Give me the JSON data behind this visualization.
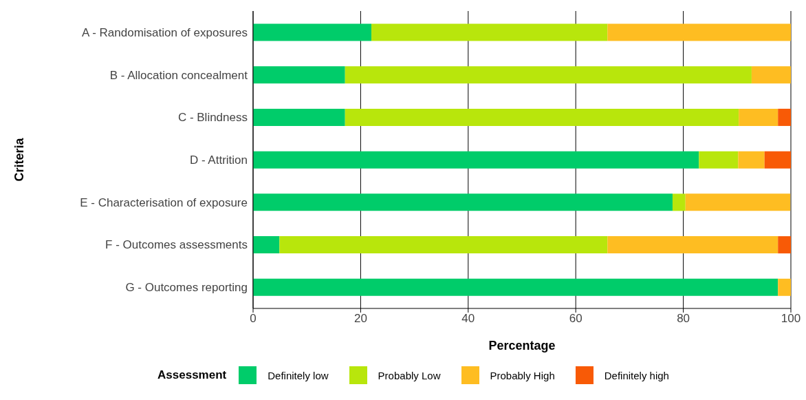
{
  "chart_data": {
    "type": "bar",
    "orientation": "horizontal",
    "stacked": true,
    "xlabel": "Percentage",
    "ylabel": "Criteria",
    "legend_title": "Assessment",
    "legend": "bottom",
    "grid": "x",
    "categories": [
      "A - Randomisation of exposures",
      "B - Allocation concealment",
      "C - Blindness",
      "D - Attrition",
      "E - Characterisation of exposure",
      "F - Outcomes assessments",
      "G - Outcomes reporting"
    ],
    "xlim": [
      0,
      100
    ],
    "xticks": [
      0,
      20,
      40,
      60,
      80,
      100
    ],
    "series": [
      {
        "name": "Definitely low",
        "color": "#00cc6a",
        "values": [
          22.0,
          17.1,
          17.1,
          82.9,
          78.0,
          4.9,
          97.6
        ]
      },
      {
        "name": "Probably Low",
        "color": "#b8e60c",
        "values": [
          43.9,
          75.6,
          73.2,
          7.3,
          2.4,
          61.0,
          0
        ]
      },
      {
        "name": "Probably High",
        "color": "#febd22",
        "values": [
          34.1,
          7.3,
          7.3,
          4.9,
          19.5,
          31.7,
          2.4
        ]
      },
      {
        "name": "Definitely high",
        "color": "#f85a06",
        "values": [
          0,
          0,
          2.4,
          4.9,
          0,
          2.4,
          0
        ]
      }
    ]
  }
}
